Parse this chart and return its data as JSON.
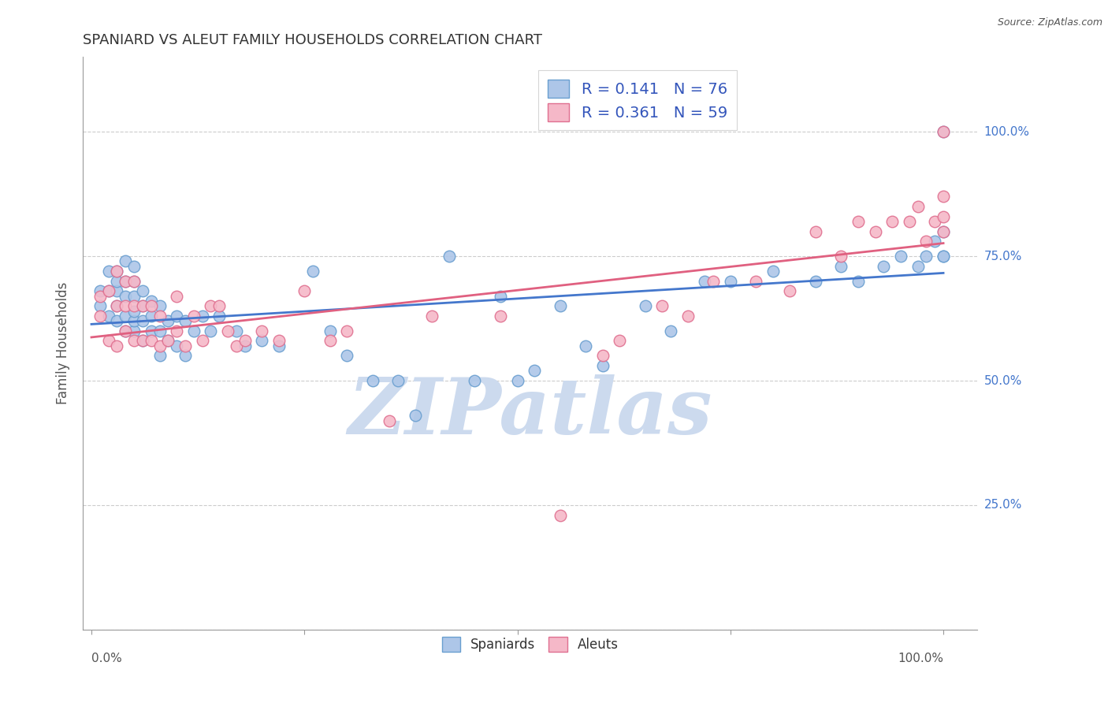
{
  "title": "SPANIARD VS ALEUT FAMILY HOUSEHOLDS CORRELATION CHART",
  "source": "Source: ZipAtlas.com",
  "ylabel": "Family Households",
  "ytick_values": [
    0.0,
    0.25,
    0.5,
    0.75,
    1.0
  ],
  "ytick_labels": [
    "",
    "25.0%",
    "50.0%",
    "75.0%",
    "100.0%"
  ],
  "xtick_labels": [
    "0.0%",
    "100.0%"
  ],
  "spaniard_color": "#adc6e8",
  "spaniard_edge_color": "#6a9fd0",
  "aleut_color": "#f5b8c8",
  "aleut_edge_color": "#e07090",
  "trend_blue": "#4477cc",
  "trend_pink": "#e06080",
  "background_color": "#ffffff",
  "title_color": "#333333",
  "watermark_color": "#ccdaee",
  "watermark_text": "ZIPatlas",
  "grid_color": "#cccccc",
  "right_label_color": "#4477cc",
  "stats_text_color": "#3355bb",
  "spaniard_x": [
    0.01,
    0.01,
    0.02,
    0.02,
    0.02,
    0.03,
    0.03,
    0.03,
    0.03,
    0.03,
    0.04,
    0.04,
    0.04,
    0.04,
    0.04,
    0.05,
    0.05,
    0.05,
    0.05,
    0.05,
    0.05,
    0.06,
    0.06,
    0.06,
    0.06,
    0.07,
    0.07,
    0.07,
    0.08,
    0.08,
    0.08,
    0.09,
    0.09,
    0.1,
    0.1,
    0.11,
    0.11,
    0.12,
    0.13,
    0.14,
    0.15,
    0.17,
    0.18,
    0.2,
    0.22,
    0.26,
    0.28,
    0.3,
    0.33,
    0.36,
    0.38,
    0.42,
    0.45,
    0.48,
    0.5,
    0.52,
    0.55,
    0.58,
    0.6,
    0.65,
    0.68,
    0.72,
    0.75,
    0.8,
    0.85,
    0.88,
    0.9,
    0.93,
    0.95,
    0.97,
    0.98,
    0.99,
    1.0,
    1.0,
    1.0,
    1.0
  ],
  "spaniard_y": [
    0.65,
    0.68,
    0.63,
    0.68,
    0.72,
    0.62,
    0.65,
    0.68,
    0.7,
    0.72,
    0.6,
    0.63,
    0.67,
    0.7,
    0.74,
    0.6,
    0.62,
    0.64,
    0.67,
    0.7,
    0.73,
    0.58,
    0.62,
    0.65,
    0.68,
    0.6,
    0.63,
    0.66,
    0.55,
    0.6,
    0.65,
    0.58,
    0.62,
    0.57,
    0.63,
    0.55,
    0.62,
    0.6,
    0.63,
    0.6,
    0.63,
    0.6,
    0.57,
    0.58,
    0.57,
    0.72,
    0.6,
    0.55,
    0.5,
    0.5,
    0.43,
    0.75,
    0.5,
    0.67,
    0.5,
    0.52,
    0.65,
    0.57,
    0.53,
    0.65,
    0.6,
    0.7,
    0.7,
    0.72,
    0.7,
    0.73,
    0.7,
    0.73,
    0.75,
    0.73,
    0.75,
    0.78,
    0.75,
    0.8,
    1.0,
    0.75
  ],
  "aleut_x": [
    0.01,
    0.01,
    0.02,
    0.02,
    0.03,
    0.03,
    0.03,
    0.04,
    0.04,
    0.04,
    0.05,
    0.05,
    0.05,
    0.06,
    0.06,
    0.07,
    0.07,
    0.08,
    0.08,
    0.09,
    0.1,
    0.1,
    0.11,
    0.12,
    0.13,
    0.14,
    0.15,
    0.16,
    0.17,
    0.18,
    0.2,
    0.22,
    0.25,
    0.28,
    0.3,
    0.35,
    0.4,
    0.48,
    0.55,
    0.6,
    0.62,
    0.67,
    0.7,
    0.73,
    0.78,
    0.82,
    0.85,
    0.88,
    0.9,
    0.92,
    0.94,
    0.96,
    0.97,
    0.98,
    0.99,
    1.0,
    1.0,
    1.0,
    1.0
  ],
  "aleut_y": [
    0.63,
    0.67,
    0.58,
    0.68,
    0.57,
    0.65,
    0.72,
    0.6,
    0.65,
    0.7,
    0.58,
    0.65,
    0.7,
    0.58,
    0.65,
    0.58,
    0.65,
    0.57,
    0.63,
    0.58,
    0.6,
    0.67,
    0.57,
    0.63,
    0.58,
    0.65,
    0.65,
    0.6,
    0.57,
    0.58,
    0.6,
    0.58,
    0.68,
    0.58,
    0.6,
    0.42,
    0.63,
    0.63,
    0.23,
    0.55,
    0.58,
    0.65,
    0.63,
    0.7,
    0.7,
    0.68,
    0.8,
    0.75,
    0.82,
    0.8,
    0.82,
    0.82,
    0.85,
    0.78,
    0.82,
    0.8,
    0.83,
    0.87,
    1.0
  ]
}
